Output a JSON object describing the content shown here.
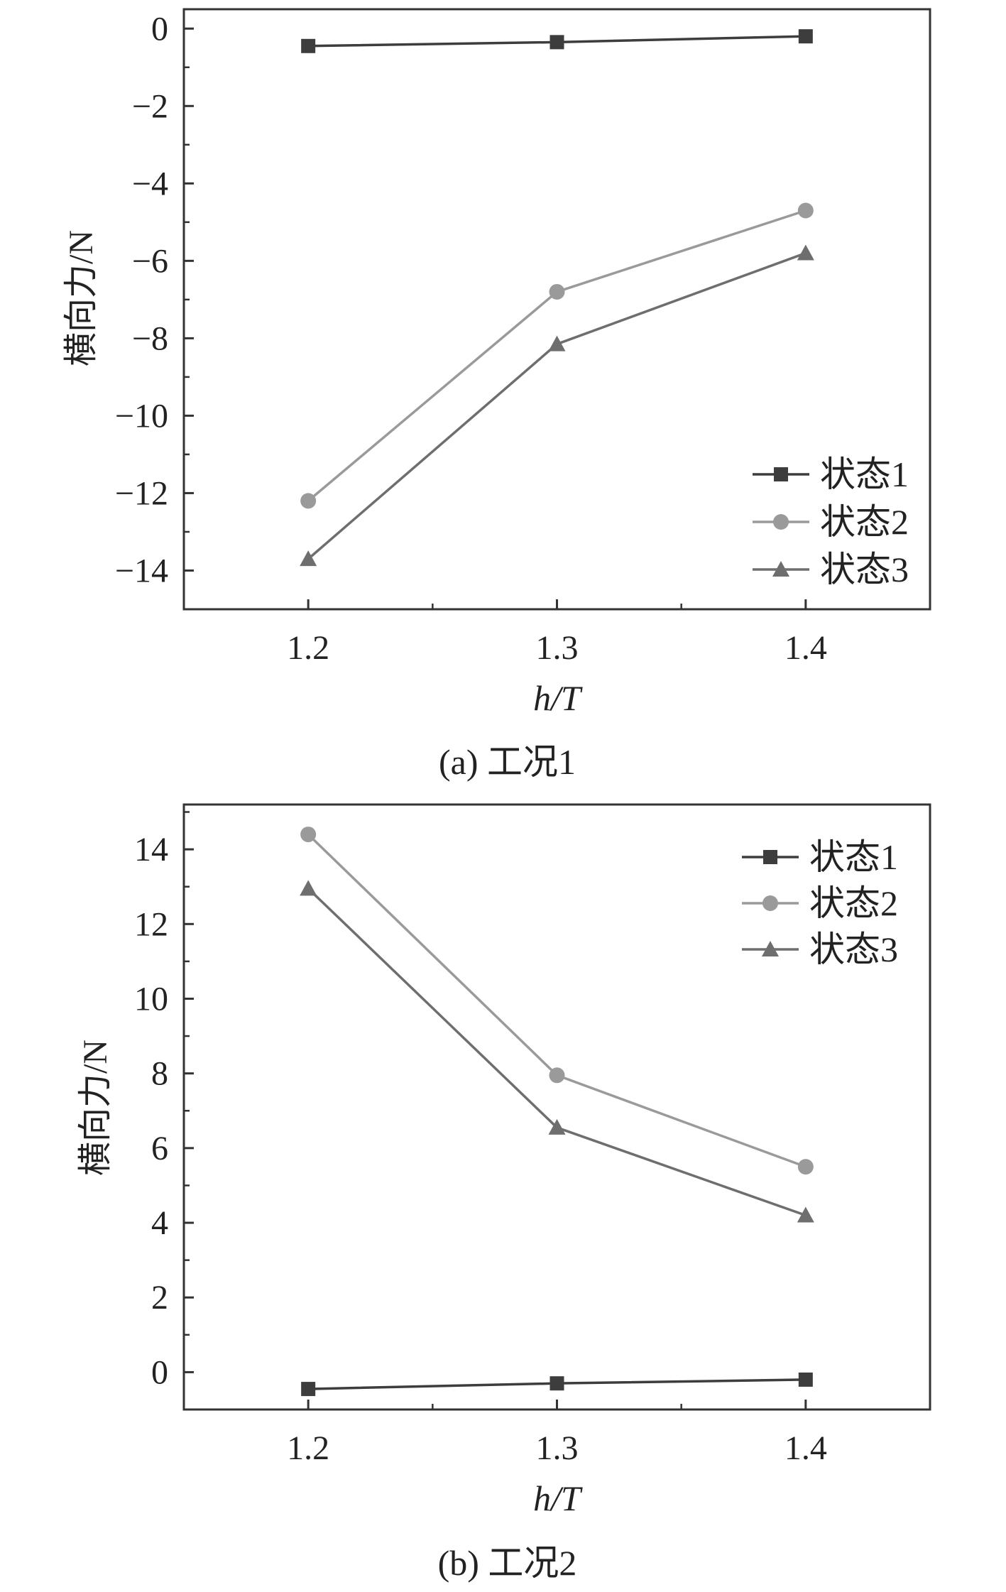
{
  "chart_data": [
    {
      "type": "line",
      "caption": "(a) 工况1",
      "xlabel": "h/T",
      "ylabel": "横向力/N",
      "x": [
        1.2,
        1.3,
        1.4
      ],
      "x_tick_labels": [
        "1.2",
        "1.3",
        "1.4"
      ],
      "xlim": [
        1.15,
        1.45
      ],
      "ylim": [
        -15,
        0.5
      ],
      "yticks": [
        0,
        -2,
        -4,
        -6,
        -8,
        -10,
        -12,
        -14
      ],
      "y_tick_labels": [
        "0",
        "−2",
        "−4",
        "−6",
        "−8",
        "−10",
        "−12",
        "−14"
      ],
      "legend_position": "bottom-right",
      "grid": false,
      "series": [
        {
          "name": "状态1",
          "marker": "square",
          "color": "#3d3d3d",
          "values": [
            -0.45,
            -0.35,
            -0.2
          ]
        },
        {
          "name": "状态2",
          "marker": "circle",
          "color": "#9a9a9a",
          "values": [
            -12.2,
            -6.8,
            -4.7
          ]
        },
        {
          "name": "状态3",
          "marker": "triangle",
          "color": "#6e6e6e",
          "values": [
            -13.7,
            -8.15,
            -5.8
          ]
        }
      ]
    },
    {
      "type": "line",
      "caption": "(b) 工况2",
      "xlabel": "h/T",
      "ylabel": "横向力/N",
      "x": [
        1.2,
        1.3,
        1.4
      ],
      "x_tick_labels": [
        "1.2",
        "1.3",
        "1.4"
      ],
      "xlim": [
        1.15,
        1.45
      ],
      "ylim": [
        -1,
        15.2
      ],
      "yticks": [
        0,
        2,
        4,
        6,
        8,
        10,
        12,
        14
      ],
      "y_tick_labels": [
        "0",
        "2",
        "4",
        "6",
        "8",
        "10",
        "12",
        "14"
      ],
      "legend_position": "top-right",
      "grid": false,
      "series": [
        {
          "name": "状态1",
          "marker": "square",
          "color": "#3d3d3d",
          "values": [
            -0.45,
            -0.3,
            -0.2
          ]
        },
        {
          "name": "状态2",
          "marker": "circle",
          "color": "#9a9a9a",
          "values": [
            14.4,
            7.95,
            5.5
          ]
        },
        {
          "name": "状态3",
          "marker": "triangle",
          "color": "#6e6e6e",
          "values": [
            12.95,
            6.55,
            4.2
          ]
        }
      ]
    }
  ]
}
